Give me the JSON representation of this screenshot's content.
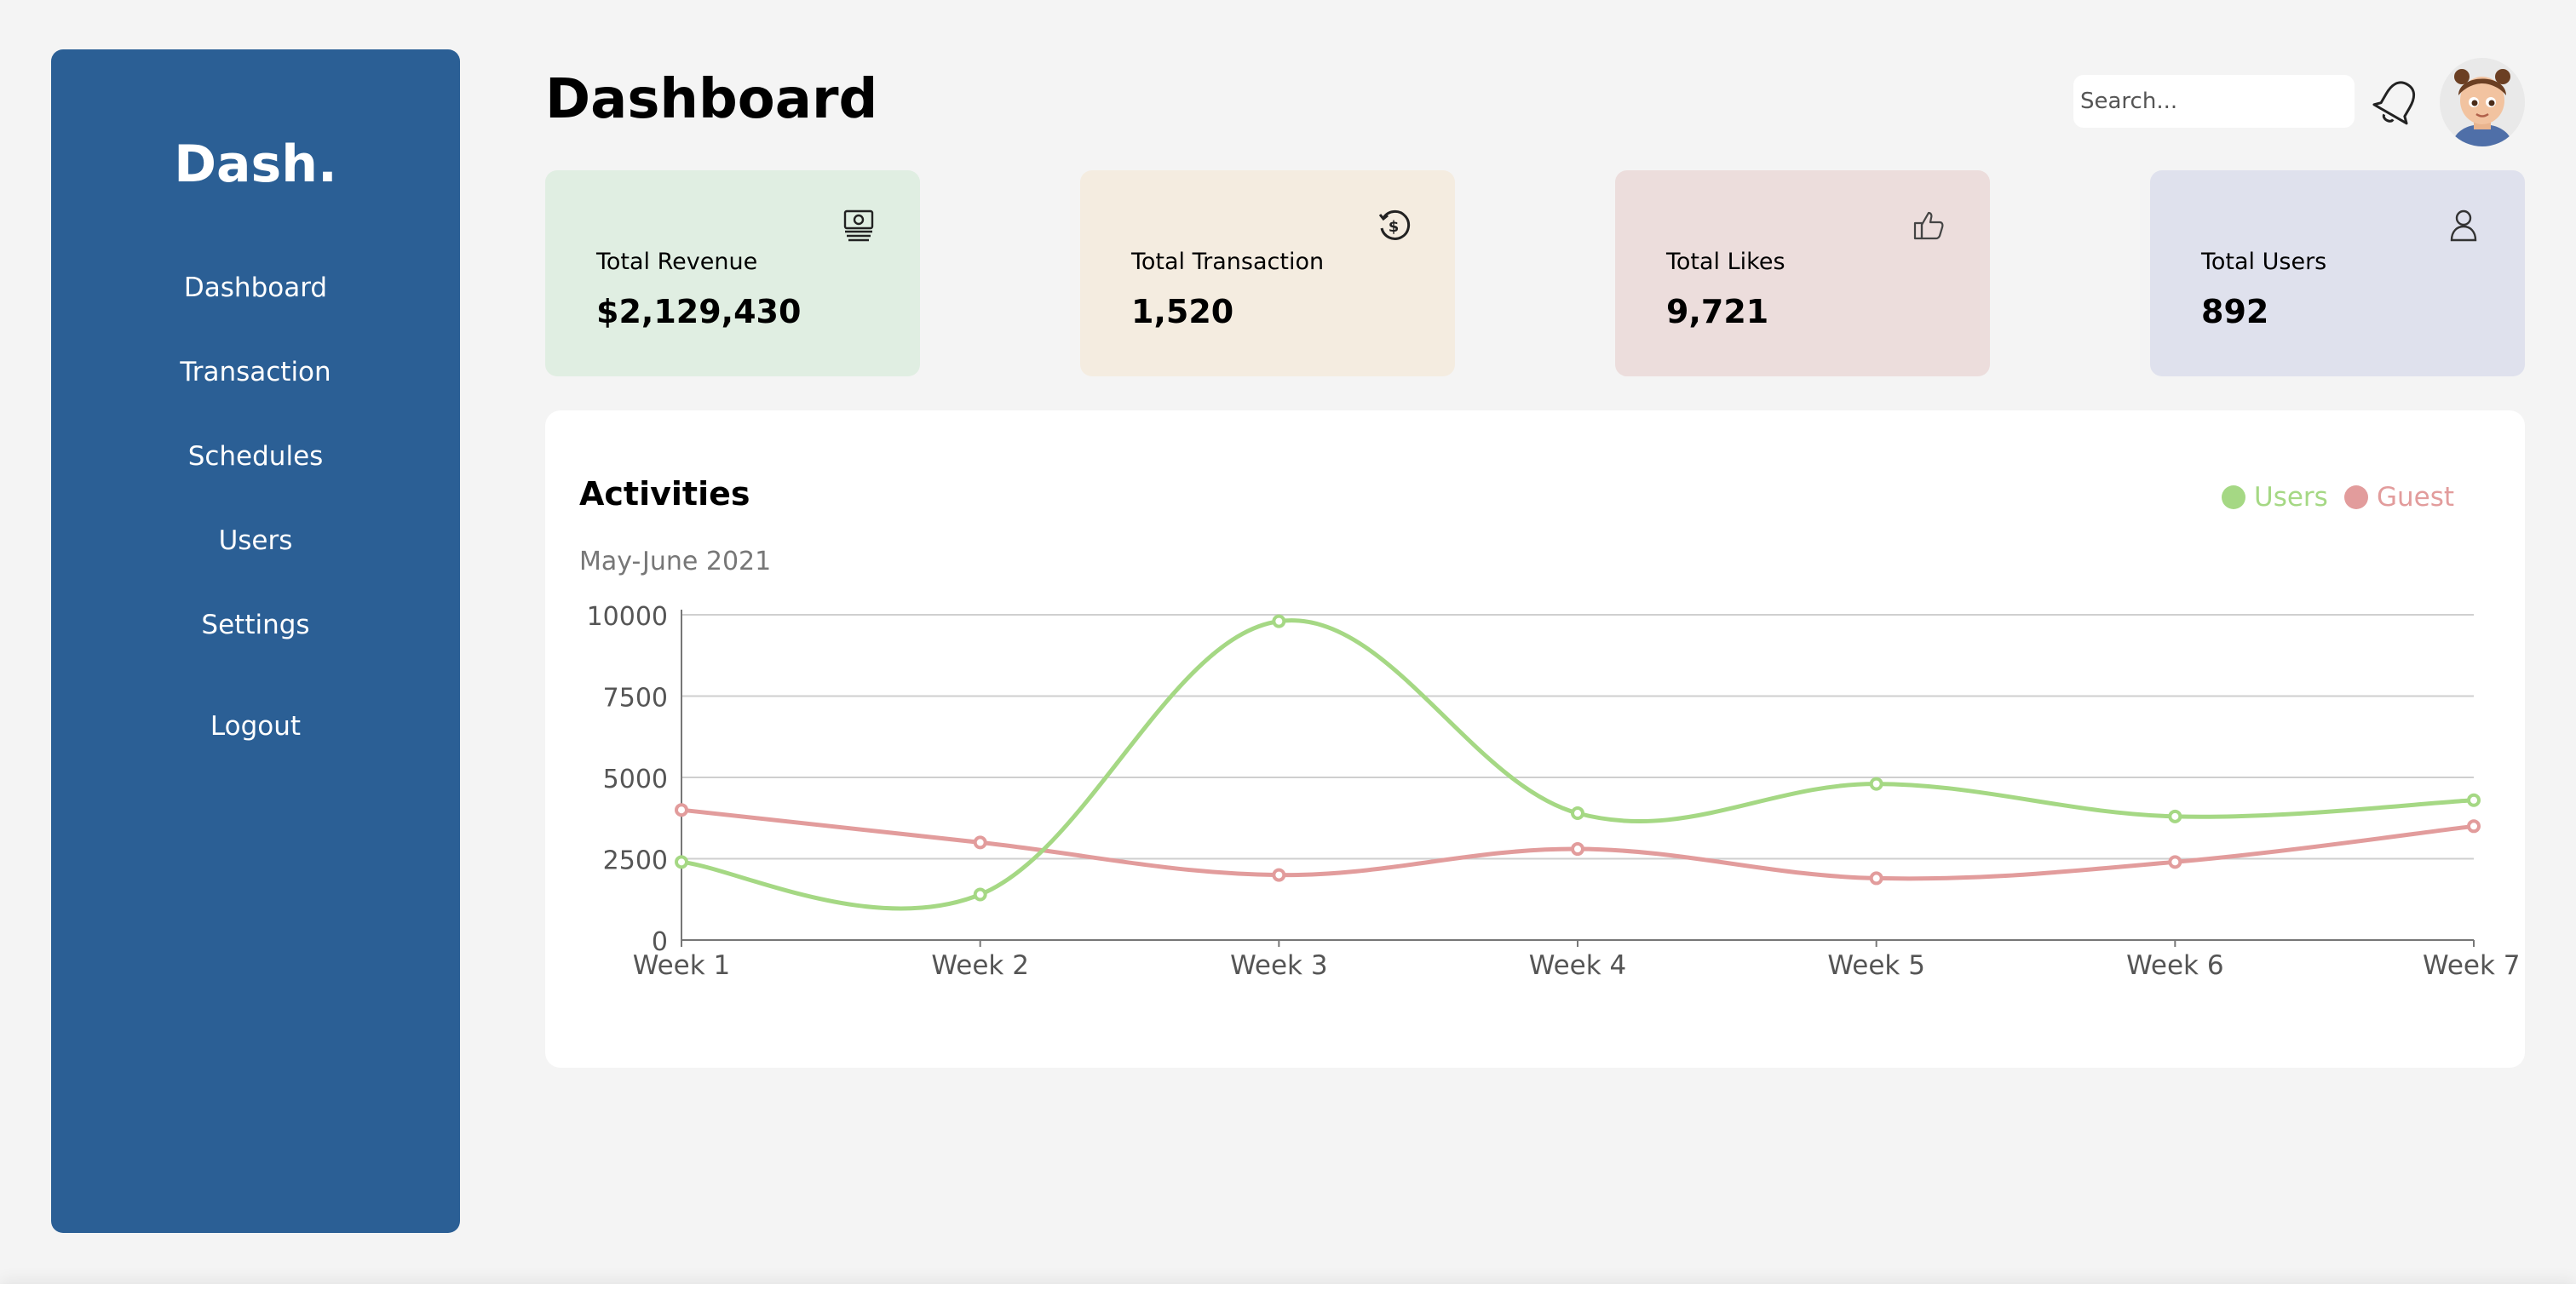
{
  "brand": "Dash.",
  "sidebar": {
    "items": [
      {
        "label": "Dashboard"
      },
      {
        "label": "Transaction"
      },
      {
        "label": "Schedules"
      },
      {
        "label": "Users"
      },
      {
        "label": "Settings"
      },
      {
        "label": "Logout"
      }
    ]
  },
  "header": {
    "title": "Dashboard",
    "search_placeholder": "Search...",
    "icons": [
      "bell-icon",
      "avatar"
    ]
  },
  "cards": [
    {
      "label": "Total Revenue",
      "value": "$2,129,430",
      "icon": "money-icon",
      "color": "#e0eee2"
    },
    {
      "label": "Total Transaction",
      "value": "1,520",
      "icon": "transaction-icon",
      "color": "#f4ece0"
    },
    {
      "label": "Total Likes",
      "value": "9,721",
      "icon": "like-icon",
      "color": "#ecdddc"
    },
    {
      "label": "Total Users",
      "value": "892",
      "icon": "user-icon",
      "color": "#dfe1ed"
    }
  ],
  "activities": {
    "title": "Activities",
    "subtitle": "May-June 2021"
  },
  "chart_data": {
    "type": "line",
    "categories": [
      "Week 1",
      "Week 2",
      "Week 3",
      "Week 4",
      "Week 5",
      "Week 6",
      "Week 7"
    ],
    "series": [
      {
        "name": "Users",
        "color": "#a5d884",
        "values": [
          2400,
          1400,
          9800,
          3900,
          4800,
          3800,
          4300
        ]
      },
      {
        "name": "Guest",
        "color": "#e29c9c",
        "values": [
          4000,
          3000,
          2000,
          2800,
          1900,
          2400,
          3500
        ]
      }
    ],
    "yticks": [
      "0",
      "2500",
      "5000",
      "7500",
      "10000"
    ],
    "ylim": [
      0,
      10000
    ],
    "grid": true,
    "legend": "top-right"
  }
}
